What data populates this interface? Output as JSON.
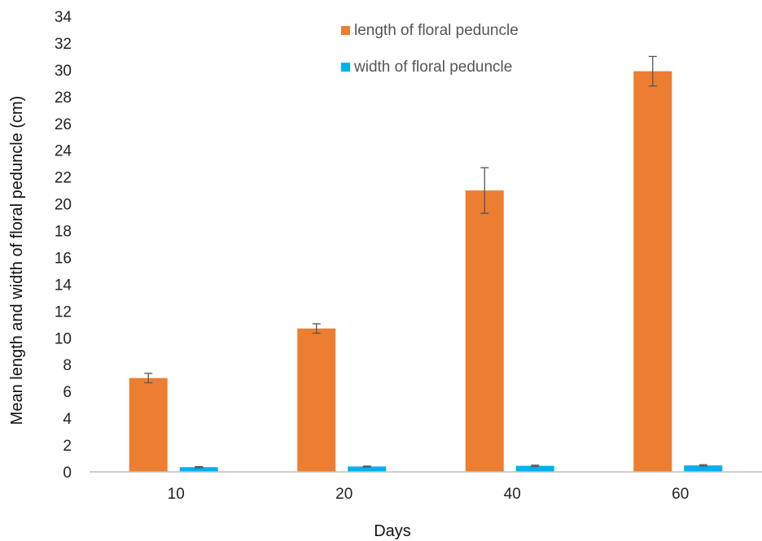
{
  "chart_data": {
    "type": "bar",
    "categories": [
      "10",
      "20",
      "40",
      "60"
    ],
    "series": [
      {
        "name": "length of floral peduncle",
        "color": "#ED7D31",
        "values": [
          7.0,
          10.7,
          21.0,
          29.9
        ],
        "errors": [
          0.35,
          0.35,
          1.7,
          1.1
        ]
      },
      {
        "name": "width of floral peduncle",
        "color": "#00B0F0",
        "values": [
          0.35,
          0.4,
          0.45,
          0.48
        ],
        "errors": [
          0.04,
          0.03,
          0.05,
          0.05
        ]
      }
    ],
    "title": "",
    "xlabel": "Days",
    "ylabel": "Mean length and width of floral peduncle (cm)",
    "ylim": [
      0,
      34
    ],
    "yticks": [
      "0",
      "2",
      "4",
      "6",
      "8",
      "10",
      "12",
      "14",
      "16",
      "18",
      "20",
      "22",
      "24",
      "26",
      "28",
      "30",
      "32",
      "34"
    ],
    "grid": false,
    "legend_position": "top-center",
    "error_bar_color": "#555555",
    "axis_color": "#BFBFBF"
  }
}
